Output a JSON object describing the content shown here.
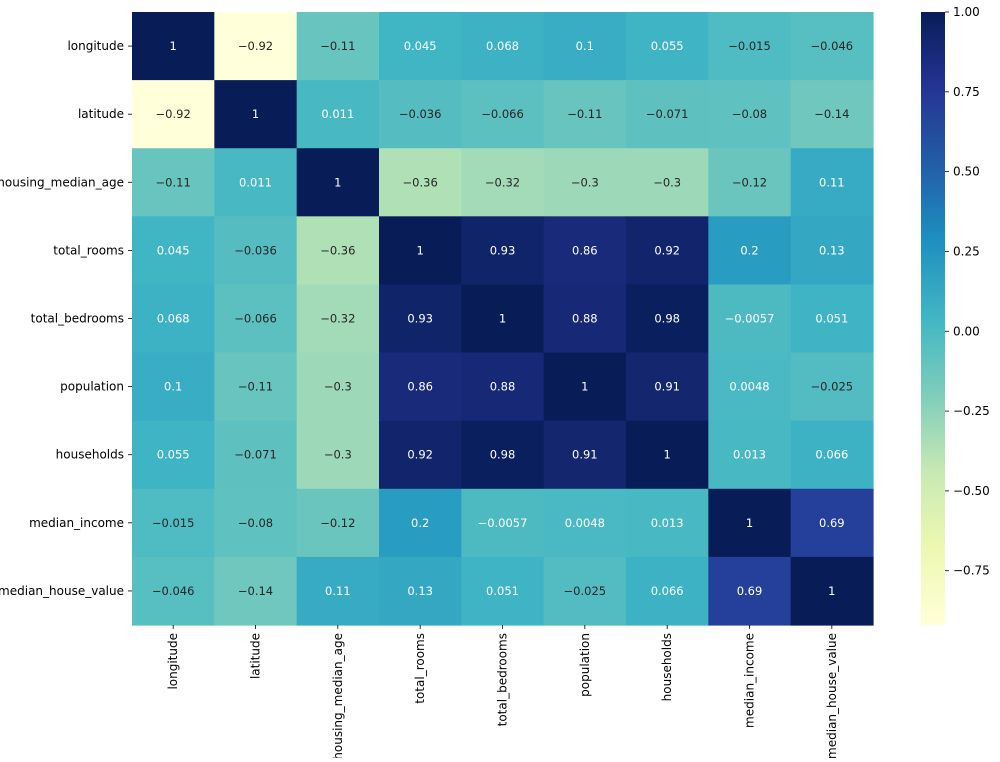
{
  "chart_data": {
    "type": "heatmap",
    "title": "",
    "xlabel": "",
    "ylabel": "",
    "labels": [
      "longitude",
      "latitude",
      "housing_median_age",
      "total_rooms",
      "total_bedrooms",
      "population",
      "households",
      "median_income",
      "median_house_value"
    ],
    "values": [
      [
        1,
        -0.92,
        -0.11,
        0.045,
        0.068,
        0.1,
        0.055,
        -0.015,
        -0.046
      ],
      [
        -0.92,
        1,
        0.011,
        -0.036,
        -0.066,
        -0.11,
        -0.071,
        -0.08,
        -0.14
      ],
      [
        -0.11,
        0.011,
        1,
        -0.36,
        -0.32,
        -0.3,
        -0.3,
        -0.12,
        0.11
      ],
      [
        0.045,
        -0.036,
        -0.36,
        1,
        0.93,
        0.86,
        0.92,
        0.2,
        0.13
      ],
      [
        0.068,
        -0.066,
        -0.32,
        0.93,
        1,
        0.88,
        0.98,
        -0.0057,
        0.051
      ],
      [
        0.1,
        -0.11,
        -0.3,
        0.86,
        0.88,
        1,
        0.91,
        0.0048,
        -0.025
      ],
      [
        0.055,
        -0.071,
        -0.3,
        0.92,
        0.98,
        0.91,
        1,
        0.013,
        0.066
      ],
      [
        -0.015,
        -0.08,
        -0.12,
        0.2,
        -0.0057,
        0.0048,
        0.013,
        1,
        0.69
      ],
      [
        -0.046,
        -0.14,
        0.11,
        0.13,
        0.051,
        -0.025,
        0.066,
        0.69,
        1
      ]
    ],
    "colormap": "YlGnBu",
    "vmin": -0.92,
    "vmax": 1.0,
    "colorbar_ticks": [
      1.0,
      0.75,
      0.5,
      0.25,
      0.0,
      -0.25,
      -0.5,
      -0.75
    ],
    "colorbar_tick_labels": [
      "1.00",
      "0.75",
      "0.50",
      "0.25",
      "0.00",
      "−0.25",
      "−0.50",
      "−0.75"
    ],
    "annotate": true
  }
}
